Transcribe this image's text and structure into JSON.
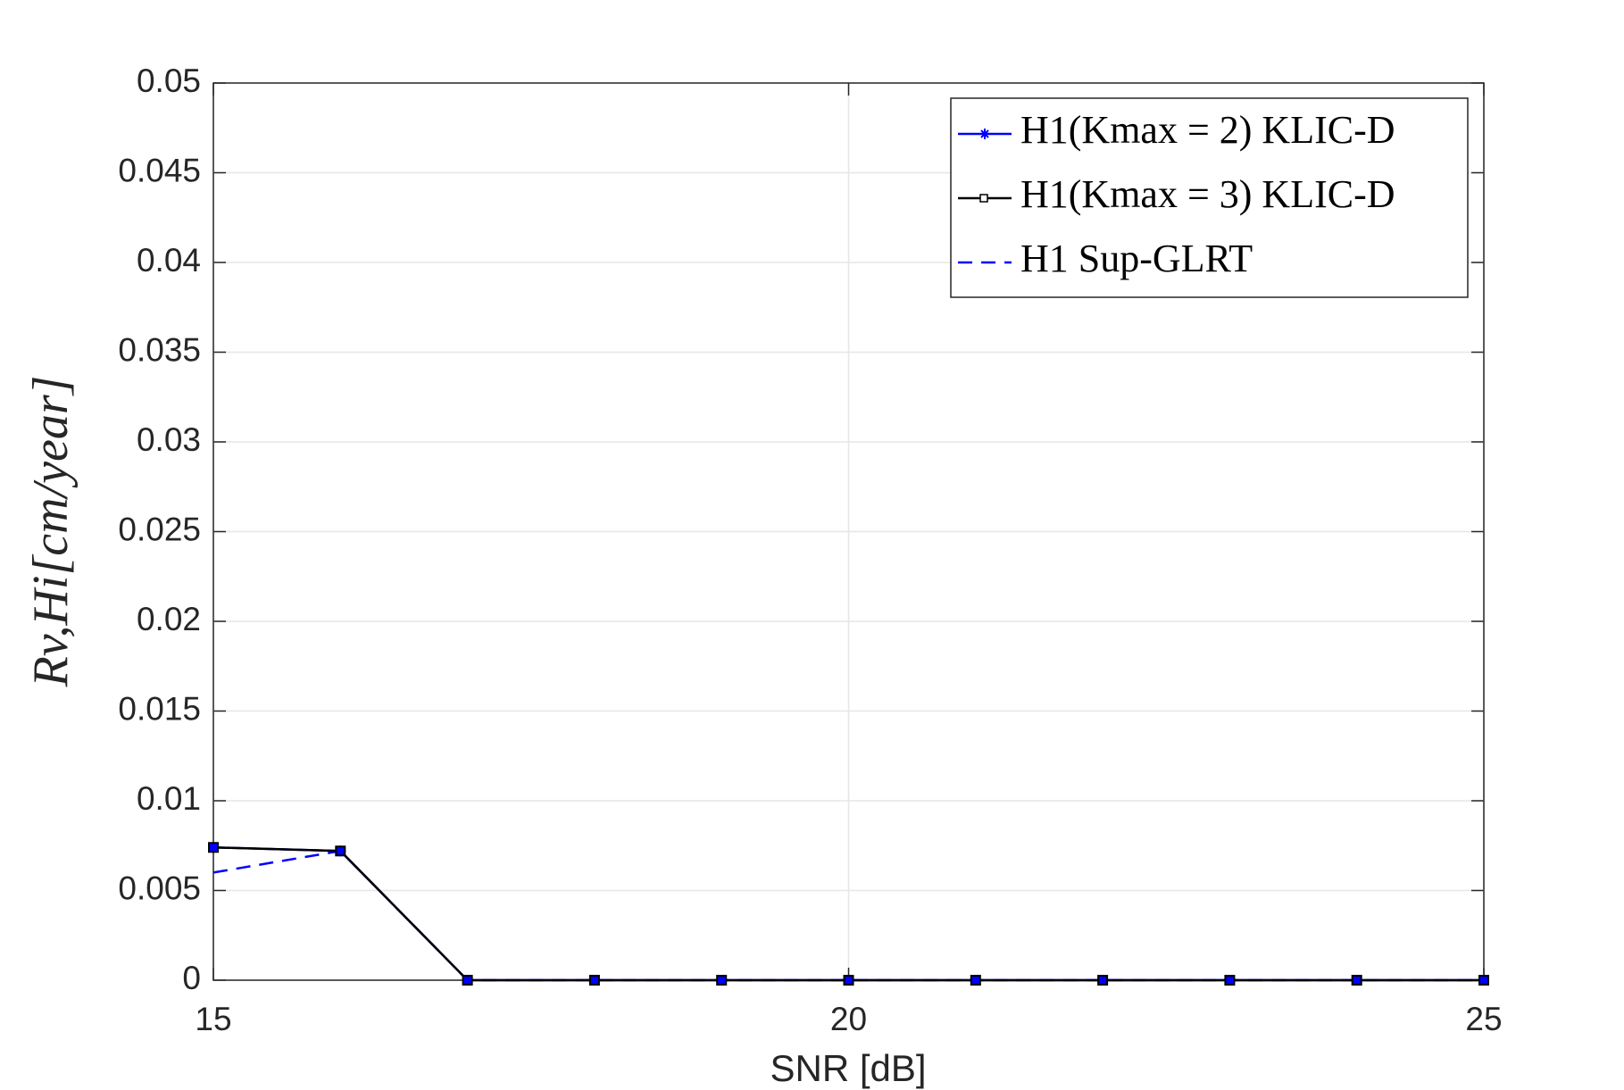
{
  "chart_data": {
    "type": "line",
    "xlabel": "SNR [dB]",
    "ylabel": "Rv,Hi[cm/year]",
    "x": [
      15,
      16,
      17,
      18,
      19,
      20,
      21,
      22,
      23,
      24,
      25
    ],
    "series": [
      {
        "name": "H1(Kmax = 2) KLIC-D",
        "color": "#0000ff",
        "marker": "asterisk",
        "dash": false,
        "values": [
          0.0074,
          0.0072,
          0,
          0,
          0,
          0,
          0,
          0,
          0,
          0,
          0
        ]
      },
      {
        "name": "H1(Kmax = 3) KLIC-D",
        "color": "#000000",
        "marker": "square",
        "dash": false,
        "values": [
          0.0074,
          0.0072,
          0,
          0,
          0,
          0,
          0,
          0,
          0,
          0,
          0
        ]
      },
      {
        "name": "H1 Sup-GLRT",
        "color": "#0000ff",
        "marker": "none",
        "dash": true,
        "values": [
          0.006,
          0.0072,
          0,
          0,
          0,
          0,
          0,
          0,
          0,
          0,
          0
        ]
      }
    ],
    "xlim": [
      15,
      25
    ],
    "xticks": [
      15,
      20,
      25
    ],
    "ylim": [
      0,
      0.05
    ],
    "yticks": [
      0,
      0.005,
      0.01,
      0.015,
      0.02,
      0.025,
      0.03,
      0.035,
      0.04,
      0.045,
      0.05
    ],
    "grid": true,
    "legend": "upper-right"
  }
}
